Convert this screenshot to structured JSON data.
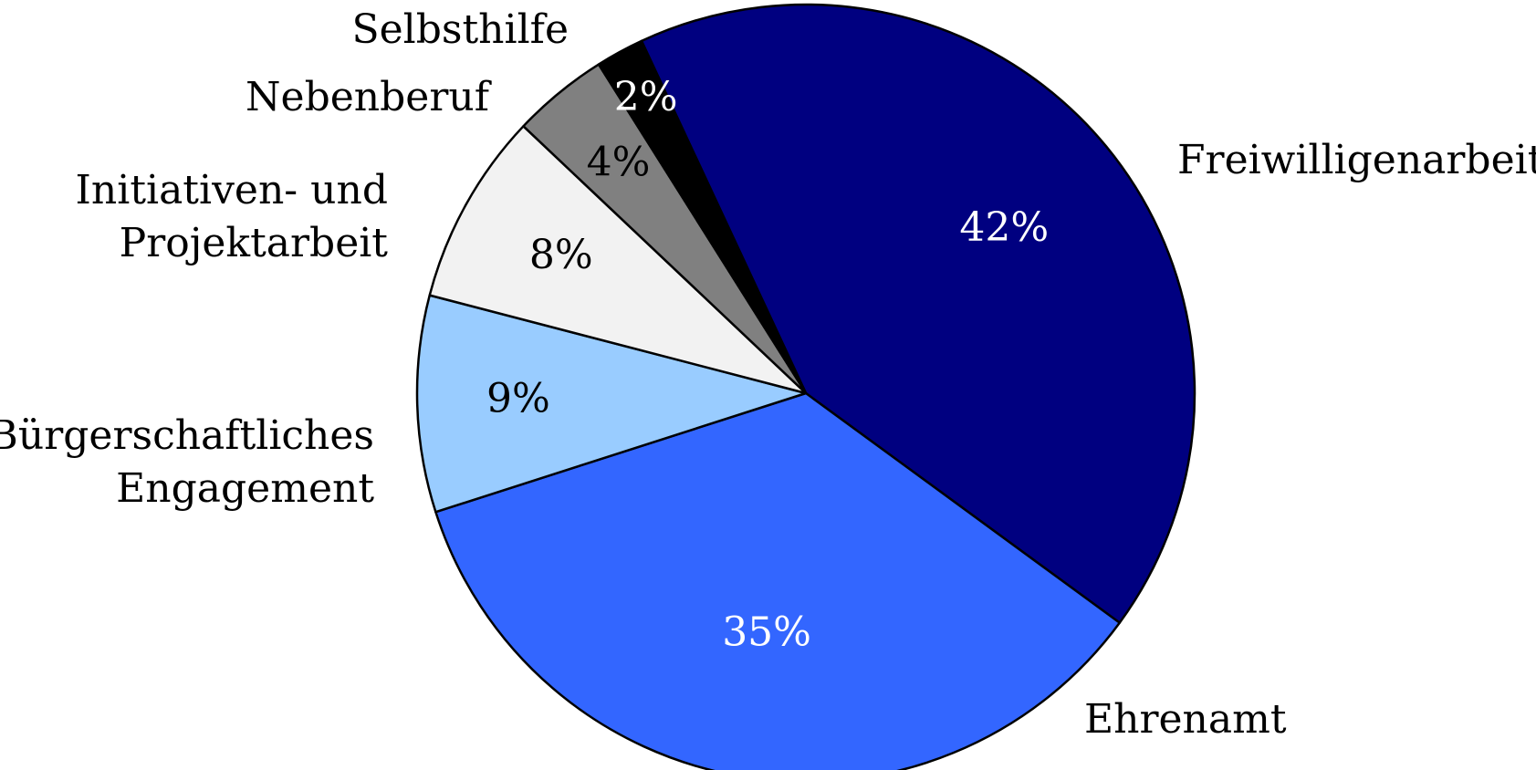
{
  "chart_data": {
    "type": "pie",
    "categories": [
      "Freiwilligenarbeit",
      "Ehrenamt",
      "Bürgerschaftliches Engagement",
      "Initiativen- und Projektarbeit",
      "Nebenberuf",
      "Selbsthilfe"
    ],
    "values": [
      42,
      35,
      9,
      8,
      4,
      2
    ],
    "value_labels": [
      "42%",
      "35%",
      "9%",
      "8%",
      "4%",
      "2%"
    ],
    "label_lines": [
      [
        "Freiwilligenarbeit"
      ],
      [
        "Ehrenamt"
      ],
      [
        "Bürgerschaftliches",
        "Engagement"
      ],
      [
        "Initiativen- und",
        "Projektarbeit"
      ],
      [
        "Nebenberuf"
      ],
      [
        "Selbsthilfe"
      ]
    ],
    "colors": [
      "#000080",
      "#3366FF",
      "#99CCFF",
      "#F2F2F2",
      "#808080",
      "#000000"
    ],
    "value_label_colors": [
      "#FFFFFF",
      "#FFFFFF",
      "#000000",
      "#000000",
      "#000000",
      "#FFFFFF"
    ],
    "start_direction": "top, slightly left of center",
    "direction": "clockwise",
    "legend": "none"
  }
}
